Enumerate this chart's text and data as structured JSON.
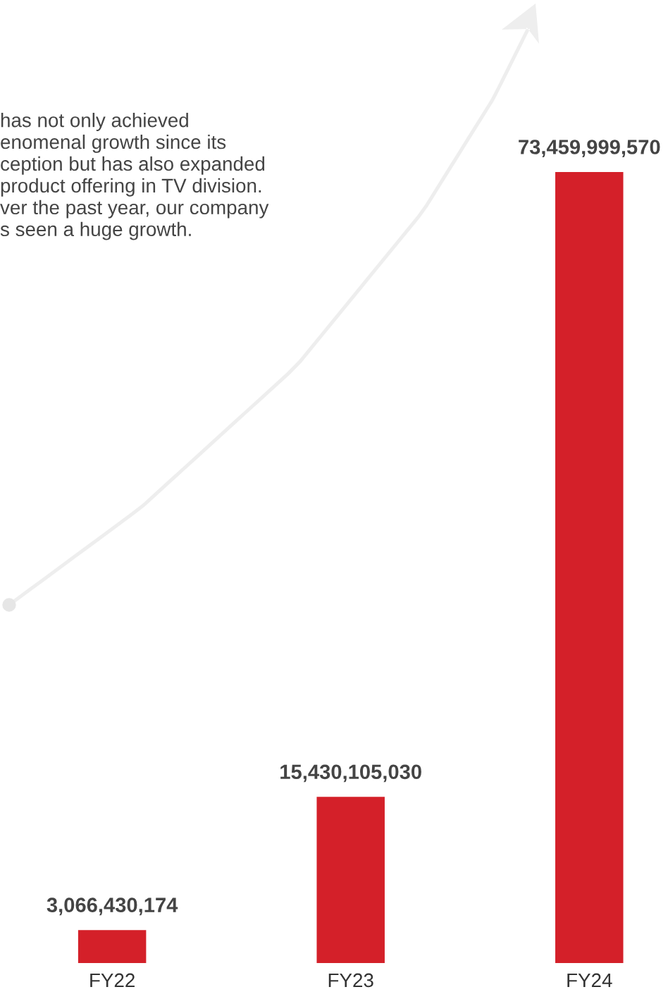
{
  "chart_data": {
    "type": "bar",
    "categories": [
      "FY22",
      "FY23",
      "FY24"
    ],
    "values": [
      3066430174,
      15430105030,
      73459999570
    ],
    "value_labels": [
      "3,066,430,174",
      "15,430,105,030",
      "73,459,999,570"
    ],
    "color": "#d42029",
    "annotations": [
      "has not only achieved\nenomenal growth since its\nception but has also expanded\nproduct offering in TV division.\nver the past year, our company\ns seen a huge growth."
    ]
  }
}
